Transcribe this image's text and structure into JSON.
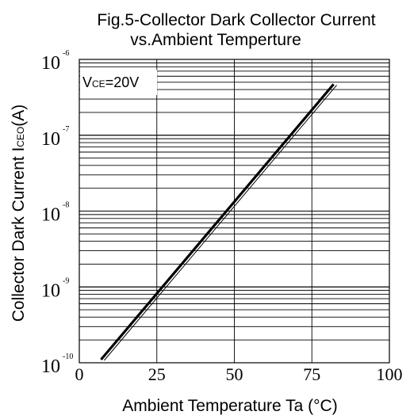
{
  "chart_data": {
    "type": "line",
    "title_line1": "Fig.5-Collector Dark Collector Current",
    "title_line2": "vs.Ambient Temperture",
    "xlabel": "Ambient Temperature Ta (°C)",
    "ylabel": {
      "main": "Collector Dark Current I",
      "sub": "CEO",
      "unit": "(A)"
    },
    "annotation": {
      "main": "V",
      "sub": "CE",
      "rest": "=20V"
    },
    "x_ticks": [
      "0",
      "25",
      "50",
      "75",
      "100"
    ],
    "y_ticks": [
      {
        "base": "10",
        "exp": "-6"
      },
      {
        "base": "10",
        "exp": "-7"
      },
      {
        "base": "10",
        "exp": "-8"
      },
      {
        "base": "10",
        "exp": "-9"
      },
      {
        "base": "10",
        "exp": "-10"
      }
    ],
    "xlim": [
      0,
      100
    ],
    "ylim": [
      1e-10,
      1e-06
    ],
    "y_scale": "log",
    "grid": true,
    "series": [
      {
        "x": [
          7,
          82
        ],
        "y": [
          1.1e-10,
          4.7e-07
        ]
      }
    ]
  }
}
